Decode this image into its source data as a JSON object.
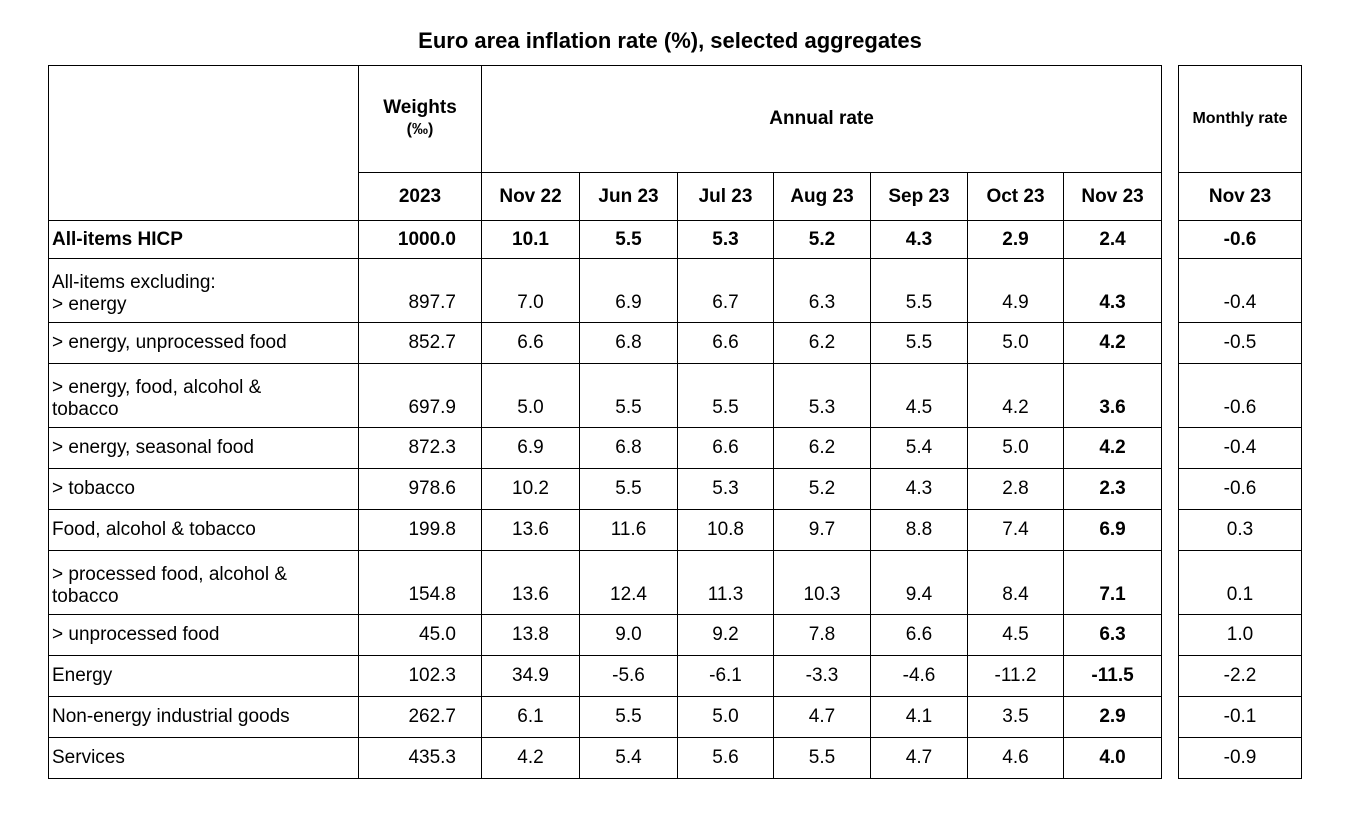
{
  "title": "Euro area inflation rate (%), selected aggregates",
  "header": {
    "weights": "Weights",
    "weights_unit": "(‰)",
    "annual": "Annual rate",
    "monthly": "Monthly rate",
    "year": "2023",
    "periods": [
      "Nov 22",
      "Jun 23",
      "Jul 23",
      "Aug 23",
      "Sep 23",
      "Oct 23",
      "Nov 23"
    ],
    "monthly_period": "Nov 23"
  },
  "rows": [
    {
      "label": "All-items HICP",
      "weight": "1000.0",
      "annual": [
        "10.1",
        "5.5",
        "5.3",
        "5.2",
        "4.3",
        "2.9",
        "2.4"
      ],
      "monthly": "-0.6"
    },
    {
      "label": "All-items excluding:\n> energy",
      "weight": "897.7",
      "annual": [
        "7.0",
        "6.9",
        "6.7",
        "6.3",
        "5.5",
        "4.9",
        "4.3"
      ],
      "monthly": "-0.4"
    },
    {
      "label": "> energy, unprocessed food",
      "weight": "852.7",
      "annual": [
        "6.6",
        "6.8",
        "6.6",
        "6.2",
        "5.5",
        "5.0",
        "4.2"
      ],
      "monthly": "-0.5"
    },
    {
      "label": "> energy, food, alcohol &\ntobacco",
      "weight": "697.9",
      "annual": [
        "5.0",
        "5.5",
        "5.5",
        "5.3",
        "4.5",
        "4.2",
        "3.6"
      ],
      "monthly": "-0.6"
    },
    {
      "label": "> energy, seasonal food",
      "weight": "872.3",
      "annual": [
        "6.9",
        "6.8",
        "6.6",
        "6.2",
        "5.4",
        "5.0",
        "4.2"
      ],
      "monthly": "-0.4"
    },
    {
      "label": "> tobacco",
      "weight": "978.6",
      "annual": [
        "10.2",
        "5.5",
        "5.3",
        "5.2",
        "4.3",
        "2.8",
        "2.3"
      ],
      "monthly": "-0.6"
    },
    {
      "label": "Food, alcohol & tobacco",
      "weight": "199.8",
      "annual": [
        "13.6",
        "11.6",
        "10.8",
        "9.7",
        "8.8",
        "7.4",
        "6.9"
      ],
      "monthly": "0.3"
    },
    {
      "label": "> processed food, alcohol &\ntobacco",
      "weight": "154.8",
      "annual": [
        "13.6",
        "12.4",
        "11.3",
        "10.3",
        "9.4",
        "8.4",
        "7.1"
      ],
      "monthly": "0.1"
    },
    {
      "label": "> unprocessed food",
      "weight": "45.0",
      "annual": [
        "13.8",
        "9.0",
        "9.2",
        "7.8",
        "6.6",
        "4.5",
        "6.3"
      ],
      "monthly": "1.0"
    },
    {
      "label": "Energy",
      "weight": "102.3",
      "annual": [
        "34.9",
        "-5.6",
        "-6.1",
        "-3.3",
        "-4.6",
        "-11.2",
        "-11.5"
      ],
      "monthly": "-2.2"
    },
    {
      "label": "Non-energy industrial goods",
      "weight": "262.7",
      "annual": [
        "6.1",
        "5.5",
        "5.0",
        "4.7",
        "4.1",
        "3.5",
        "2.9"
      ],
      "monthly": "-0.1"
    },
    {
      "label": "Services",
      "weight": "435.3",
      "annual": [
        "4.2",
        "5.4",
        "5.6",
        "5.5",
        "4.7",
        "4.6",
        "4.0"
      ],
      "monthly": "-0.9"
    }
  ]
}
